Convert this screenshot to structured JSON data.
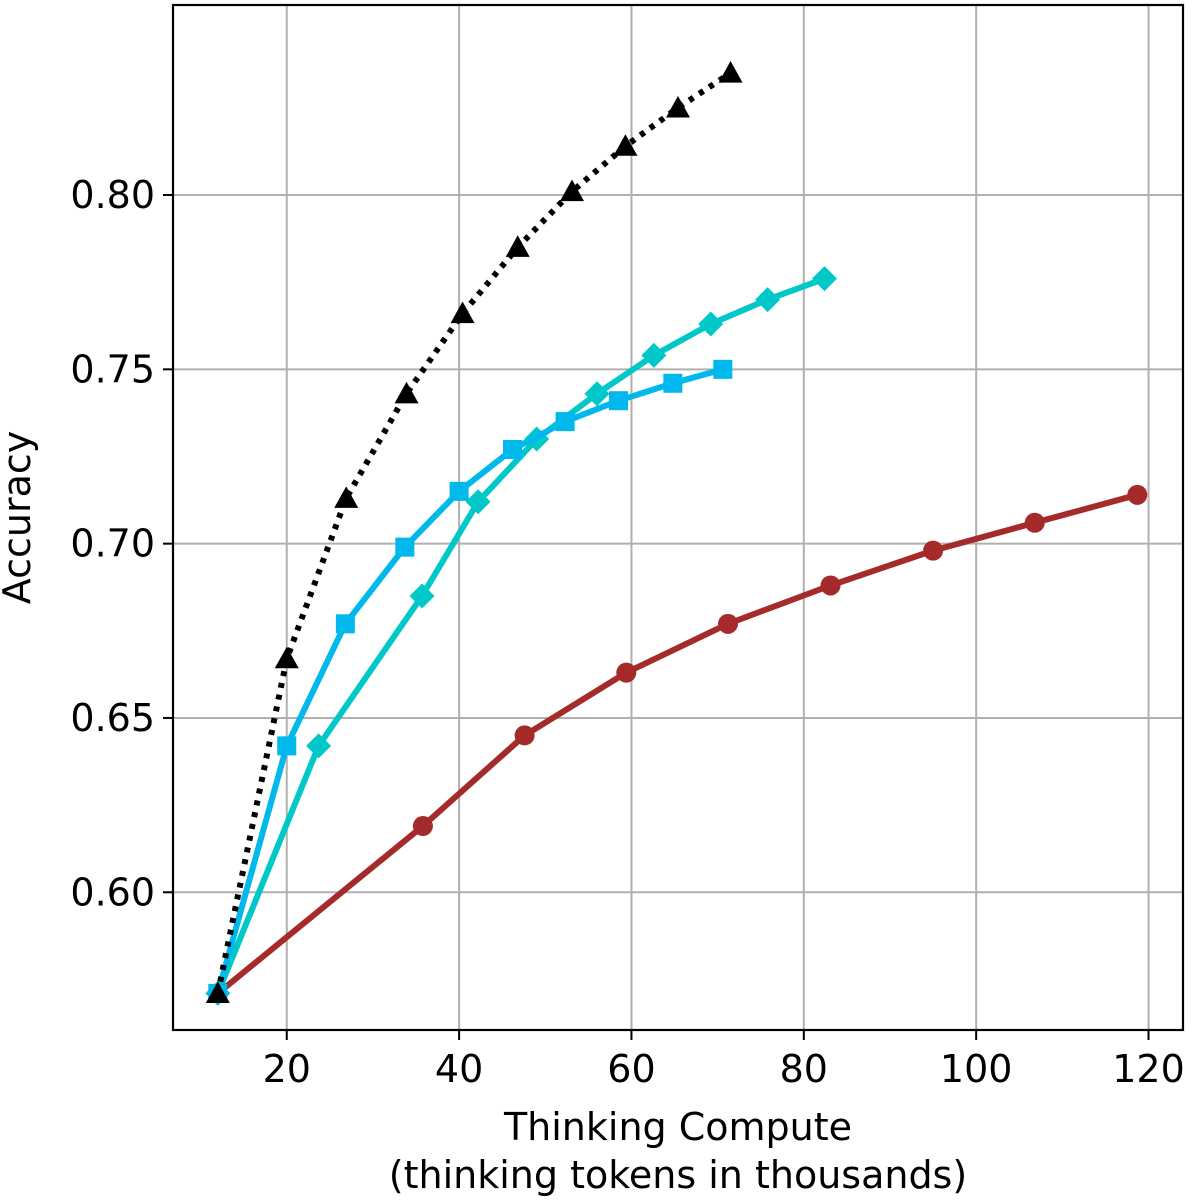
{
  "chart_data": {
    "type": "line",
    "title": "",
    "xlabel_line1": "Thinking Compute",
    "xlabel_line2": "(thinking tokens in thousands)",
    "ylabel": "Accuracy",
    "xlim": [
      6.8,
      124
    ],
    "ylim": [
      0.5605,
      0.8545
    ],
    "xticks": [
      20,
      40,
      60,
      80,
      100,
      120
    ],
    "yticks": [
      0.6,
      0.65,
      0.7,
      0.75,
      0.8
    ],
    "xtick_labels": [
      "20",
      "40",
      "60",
      "80",
      "100",
      "120"
    ],
    "ytick_labels": [
      "0.60",
      "0.65",
      "0.70",
      "0.75",
      "0.80"
    ],
    "grid": true,
    "legend": "none",
    "series": [
      {
        "color": "#a52a2a",
        "marker": "circle",
        "line_style": "solid",
        "x": [
          12.0,
          35.8,
          47.6,
          59.4,
          71.2,
          83.1,
          95.0,
          106.8,
          118.7
        ],
        "y": [
          0.571,
          0.619,
          0.645,
          0.663,
          0.677,
          0.688,
          0.698,
          0.706,
          0.714
        ]
      },
      {
        "color": "#00c8c8",
        "marker": "diamond",
        "line_style": "solid",
        "x": [
          12.0,
          23.7,
          35.7,
          42.2,
          49.0,
          56.0,
          62.6,
          69.2,
          75.8,
          82.4
        ],
        "y": [
          0.571,
          0.642,
          0.685,
          0.712,
          0.73,
          0.743,
          0.754,
          0.763,
          0.77,
          0.776
        ]
      },
      {
        "color": "#00b8ec",
        "marker": "square",
        "line_style": "solid",
        "x": [
          12.0,
          20.0,
          26.8,
          33.7,
          40.0,
          46.2,
          52.3,
          58.5,
          64.8,
          70.6
        ],
        "y": [
          0.571,
          0.642,
          0.677,
          0.699,
          0.715,
          0.727,
          0.735,
          0.741,
          0.746,
          0.75
        ]
      },
      {
        "color": "#000000",
        "marker": "triangle",
        "line_style": "dotted",
        "x": [
          12.0,
          20.0,
          26.9,
          33.9,
          40.4,
          46.8,
          53.1,
          59.3,
          65.4,
          71.5
        ],
        "y": [
          0.571,
          0.667,
          0.713,
          0.743,
          0.766,
          0.785,
          0.801,
          0.814,
          0.825,
          0.835
        ]
      }
    ]
  }
}
